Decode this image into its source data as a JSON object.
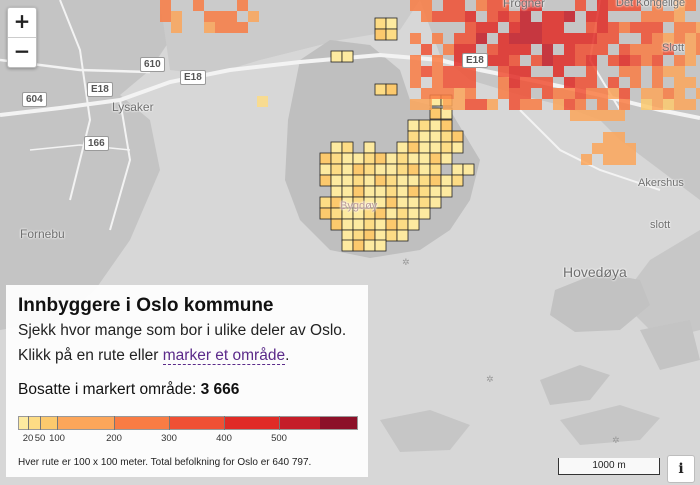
{
  "zoom": {
    "in_label": "+",
    "out_label": "−"
  },
  "map_labels": {
    "lysaker": "Lysaker",
    "fornebu": "Fornebu",
    "frogner": "Frogner",
    "det_kongelige": "Det Kongelige",
    "slott_top": "Slott",
    "akershus": "Akershus",
    "slott_bottom": "slott",
    "hovedoya": "Hovedøya",
    "bygdoy": "Bygdøy",
    "roads": [
      "E18",
      "610",
      "604",
      "E18",
      "166",
      "E18"
    ]
  },
  "panel": {
    "title": "Innbyggere i Oslo kommune",
    "line1": "Sjekk hvor mange som bor i ulike deler av Oslo.",
    "line2_prefix": "Klikk på en rute eller ",
    "line2_link": "marker et område",
    "line2_suffix": ".",
    "selected_label": "Bosatte i markert område: ",
    "selected_value": "3 666",
    "footnote": "Hver rute er 100 x 100 meter. Total befolkning for Oslo er 640 797."
  },
  "legend": {
    "colors": [
      "#fdeaa0",
      "#fddc85",
      "#fcc96d",
      "#fca65a",
      "#f97c44",
      "#f05034",
      "#e02b26",
      "#c51d28",
      "#8c1028"
    ],
    "breaks": [
      20,
      50,
      100,
      200,
      300,
      400,
      500
    ],
    "tick_labels": [
      "20",
      "50",
      "100",
      "200",
      "300",
      "400",
      "500"
    ]
  },
  "scale_bar": {
    "label": "1000 m"
  },
  "info_button": {
    "label": "i"
  }
}
